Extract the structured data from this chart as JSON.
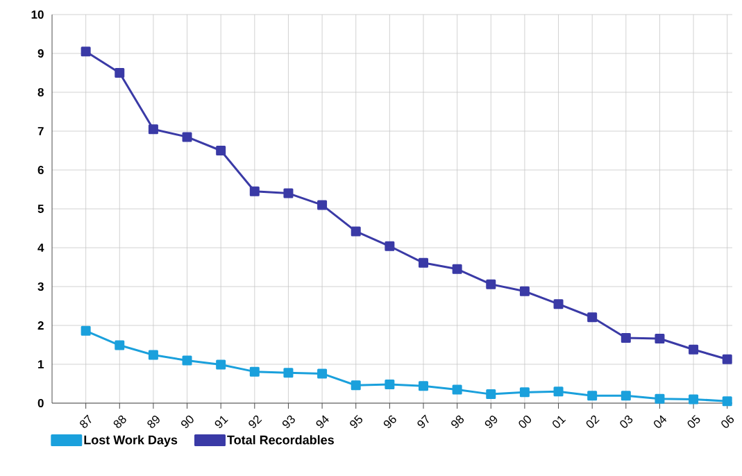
{
  "chart_data": {
    "type": "line",
    "categories": [
      "87",
      "88",
      "89",
      "90",
      "91",
      "92",
      "93",
      "94",
      "95",
      "96",
      "97",
      "98",
      "99",
      "00",
      "01",
      "02",
      "03",
      "04",
      "05",
      "06"
    ],
    "series": [
      {
        "name": "Lost Work Days",
        "color": "#1aa0dc",
        "values": [
          1.86,
          1.49,
          1.24,
          1.1,
          0.99,
          0.81,
          0.78,
          0.76,
          0.46,
          0.48,
          0.44,
          0.35,
          0.23,
          0.28,
          0.3,
          0.19,
          0.19,
          0.11,
          0.1,
          0.05
        ]
      },
      {
        "name": "Total Recordables",
        "color": "#3a3aa6",
        "values": [
          9.05,
          8.5,
          7.05,
          6.85,
          6.5,
          5.45,
          5.4,
          5.1,
          4.42,
          4.04,
          3.61,
          3.45,
          3.06,
          2.88,
          2.55,
          2.21,
          1.68,
          1.66,
          1.38,
          1.13
        ]
      }
    ],
    "ylim": [
      0,
      10
    ],
    "yticks": [
      0,
      1,
      2,
      3,
      4,
      5,
      6,
      7,
      8,
      9,
      10
    ],
    "grid": true,
    "legend": "bottom",
    "marker": "square",
    "line_style": "solid"
  }
}
